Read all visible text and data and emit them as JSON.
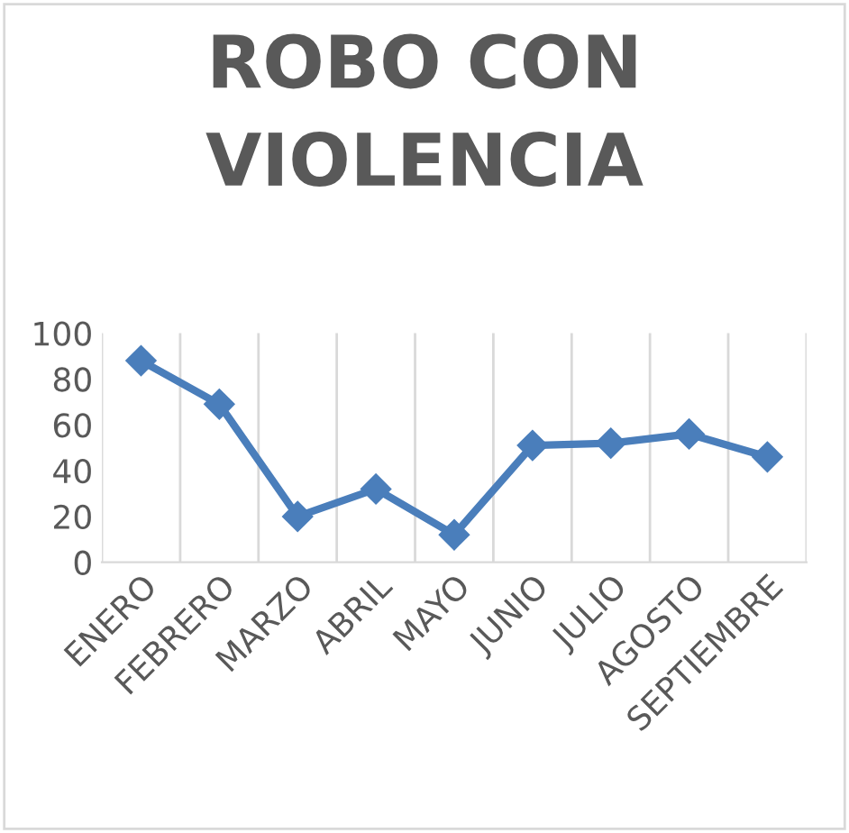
{
  "chart_data": {
    "type": "line",
    "title": "ROBO CON VIOLENCIA",
    "categories": [
      "ENERO",
      "FEBRERO",
      "MARZO",
      "ABRIL",
      "MAYO",
      "JUNIO",
      "JULIO",
      "AGOSTO",
      "SEPTIEMBRE"
    ],
    "series": [
      {
        "color": "#4a7ebb",
        "values": [
          88,
          69,
          20,
          32,
          12,
          51,
          52,
          56,
          46
        ]
      }
    ],
    "ylim": [
      0,
      100
    ],
    "yticks": [
      0,
      20,
      40,
      60,
      80,
      100
    ],
    "grid": "x",
    "marker": "diamond",
    "line_style": "solid"
  }
}
